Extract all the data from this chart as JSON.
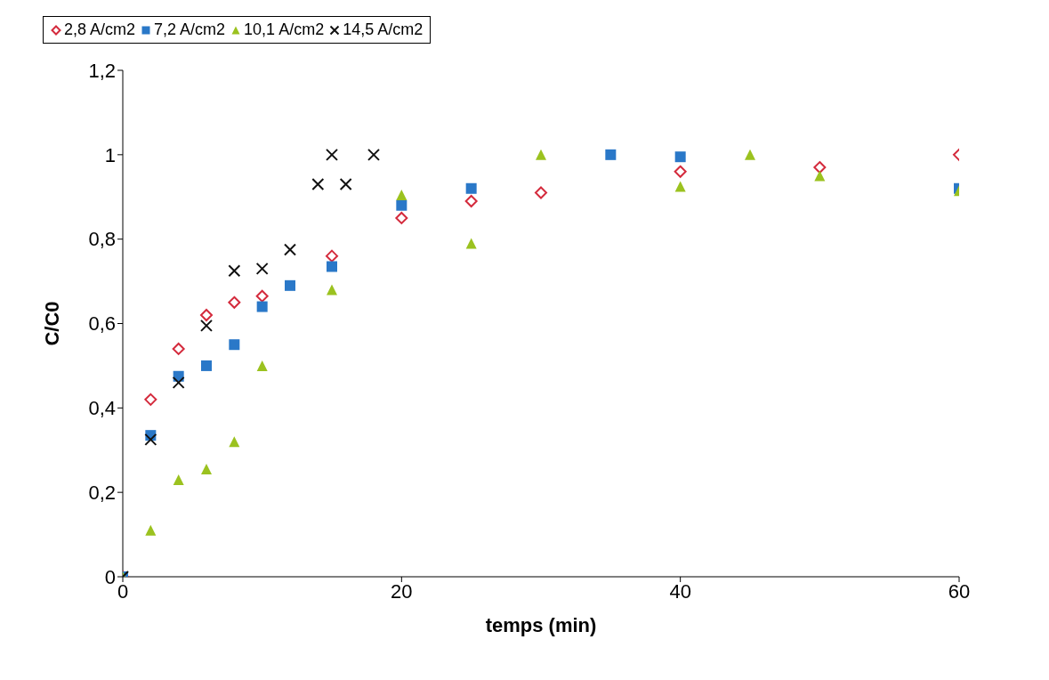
{
  "chart_data": {
    "type": "scatter",
    "xlabel": "temps (min)",
    "ylabel": "C/C0",
    "xlim": [
      0,
      60
    ],
    "xticks": [
      0,
      20,
      40,
      60
    ],
    "ylim": [
      0,
      1.2
    ],
    "yticks": [
      0,
      {
        "value": 0.2,
        "label": "0,2"
      },
      {
        "value": 0.4,
        "label": "0,4"
      },
      {
        "value": 0.6,
        "label": "0,6"
      },
      {
        "value": 0.8,
        "label": "0,8"
      },
      1,
      {
        "value": 1.2,
        "label": "1,2"
      }
    ],
    "grid": false,
    "legend": "top",
    "series": [
      {
        "name": "2,8 A/cm2",
        "color": "#d42a3c",
        "marker": "diamond",
        "x": [
          0,
          2,
          4,
          6,
          8,
          10,
          15,
          20,
          25,
          30,
          40,
          50,
          60
        ],
        "values": [
          0,
          0.42,
          0.54,
          0.62,
          0.65,
          0.665,
          0.76,
          0.85,
          0.89,
          0.91,
          0.96,
          0.97,
          1.0
        ]
      },
      {
        "name": "7,2 A/cm2",
        "color": "#2a78c8",
        "marker": "square",
        "x": [
          0,
          2,
          4,
          6,
          8,
          10,
          12,
          15,
          20,
          25,
          35,
          40,
          60
        ],
        "values": [
          0,
          0.335,
          0.475,
          0.5,
          0.55,
          0.64,
          0.69,
          0.735,
          0.88,
          0.92,
          1.0,
          0.995,
          0.92
        ]
      },
      {
        "name": "10,1 A/cm2",
        "color": "#9bc21f",
        "marker": "triangle",
        "x": [
          0,
          2,
          4,
          6,
          8,
          10,
          15,
          20,
          25,
          30,
          40,
          45,
          50,
          60
        ],
        "values": [
          0,
          0.11,
          0.23,
          0.255,
          0.32,
          0.5,
          0.68,
          0.905,
          0.79,
          1.0,
          0.925,
          1.0,
          0.95,
          0.915
        ]
      },
      {
        "name": "14,5 A/cm2",
        "color": "#111111",
        "marker": "cross",
        "x": [
          0,
          2,
          4,
          6,
          8,
          10,
          12,
          14,
          15,
          16,
          18
        ],
        "values": [
          0,
          0.325,
          0.46,
          0.595,
          0.725,
          0.73,
          0.775,
          0.93,
          1.0,
          0.93,
          1.0
        ]
      }
    ]
  }
}
